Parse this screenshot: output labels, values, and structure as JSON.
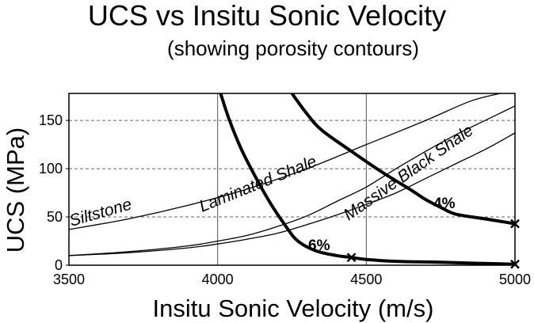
{
  "chart_data": {
    "type": "line",
    "title": "UCS vs Insitu Sonic Velocity",
    "subtitle": "(showing porosity contours)",
    "xlabel": "Insitu Sonic Velocity (m/s)",
    "ylabel": "UCS (MPa)",
    "xlim": [
      3500,
      5000
    ],
    "ylim": [
      0,
      178
    ],
    "xticks": [
      3500,
      4000,
      4500,
      5000
    ],
    "yticks": [
      0,
      50,
      100,
      150
    ],
    "grid": {
      "vertical": "solid",
      "horizontal": "dashed"
    },
    "series": [
      {
        "name": "Siltstone",
        "style": "thin",
        "points": [
          [
            3500,
            37
          ],
          [
            3700,
            48
          ],
          [
            3900,
            62
          ],
          [
            4100,
            79
          ],
          [
            4300,
            100
          ],
          [
            4500,
            125
          ],
          [
            4700,
            150
          ],
          [
            4850,
            170
          ],
          [
            4950,
            178
          ]
        ]
      },
      {
        "name": "Laminated Shale",
        "style": "thin",
        "points": [
          [
            3500,
            10
          ],
          [
            3700,
            14
          ],
          [
            3900,
            20
          ],
          [
            4000,
            25
          ],
          [
            4100,
            31
          ],
          [
            4200,
            40
          ],
          [
            4300,
            51
          ],
          [
            4400,
            66
          ],
          [
            4500,
            81
          ],
          [
            4600,
            100
          ],
          [
            4700,
            118
          ],
          [
            4800,
            135
          ],
          [
            4900,
            150
          ],
          [
            5000,
            165
          ]
        ]
      },
      {
        "name": "Massive Black Shale",
        "style": "thin",
        "points": [
          [
            3500,
            10
          ],
          [
            3700,
            13
          ],
          [
            3900,
            18
          ],
          [
            4000,
            22
          ],
          [
            4100,
            27
          ],
          [
            4200,
            33
          ],
          [
            4300,
            42
          ],
          [
            4400,
            52
          ],
          [
            4500,
            63
          ],
          [
            4600,
            75
          ],
          [
            4700,
            90
          ],
          [
            4800,
            105
          ],
          [
            4900,
            120
          ],
          [
            5000,
            137
          ]
        ]
      },
      {
        "name": "6%",
        "style": "thick",
        "points": [
          [
            4010,
            178
          ],
          [
            4040,
            150
          ],
          [
            4080,
            120
          ],
          [
            4130,
            90
          ],
          [
            4180,
            63
          ],
          [
            4230,
            40
          ],
          [
            4270,
            25
          ],
          [
            4330,
            15
          ],
          [
            4400,
            10
          ],
          [
            4450,
            8
          ],
          [
            4500,
            6
          ],
          [
            4600,
            4
          ],
          [
            4750,
            3
          ],
          [
            5000,
            1
          ]
        ],
        "markers": [
          [
            4450,
            8
          ],
          [
            5000,
            1
          ]
        ]
      },
      {
        "name": "4%",
        "style": "thick",
        "points": [
          [
            4250,
            178
          ],
          [
            4300,
            157
          ],
          [
            4350,
            140
          ],
          [
            4450,
            118
          ],
          [
            4550,
            97
          ],
          [
            4650,
            78
          ],
          [
            4700,
            68
          ],
          [
            4750,
            60
          ],
          [
            4800,
            53
          ],
          [
            4900,
            48
          ],
          [
            5000,
            43
          ]
        ],
        "markers": [
          [
            5000,
            43
          ]
        ]
      }
    ],
    "labels": {
      "siltstone": "Siltstone",
      "laminated": "Laminated Shale",
      "massive": "Massive Black Shale",
      "p6": "6%",
      "p4": "4%"
    }
  }
}
